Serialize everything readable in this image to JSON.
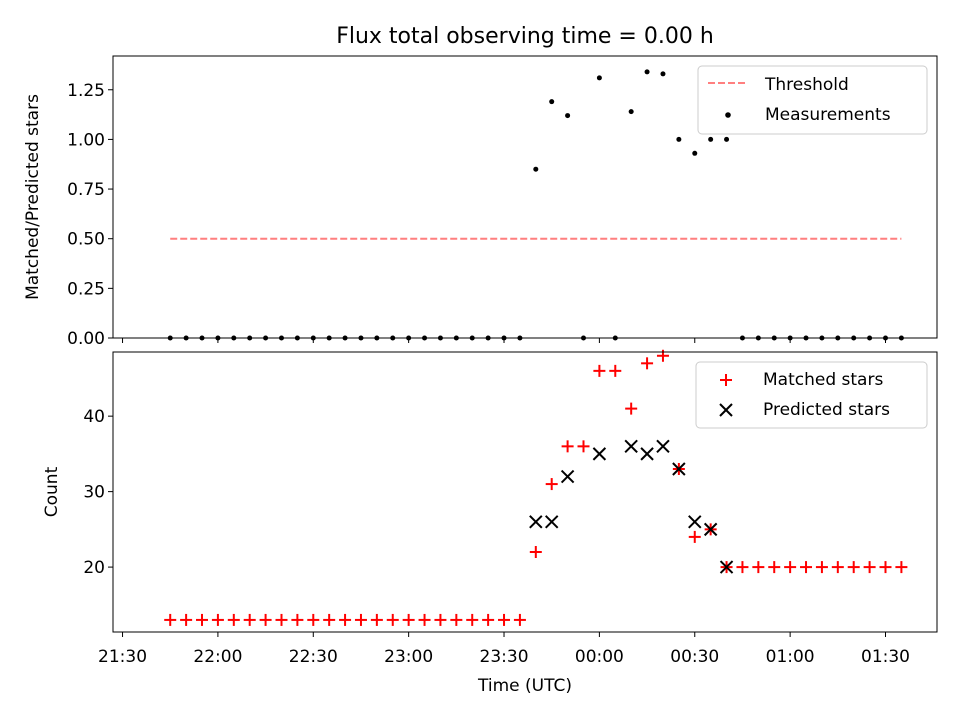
{
  "chart_data": [
    {
      "type": "scatter",
      "title": "Flux total observing time = 0.00 h",
      "xlabel": "",
      "ylabel": "Matched/Predicted stars",
      "ylim": [
        0.0,
        1.42
      ],
      "yticks": [
        "0.00",
        "0.25",
        "0.50",
        "0.75",
        "1.00",
        "1.25"
      ],
      "x_is_time": true,
      "xlim_hours": [
        21.45,
        25.77
      ],
      "legend_position": "upper right",
      "threshold": {
        "name": "Threshold",
        "x_range": [
          "21:45",
          "01:35"
        ],
        "value": 0.5,
        "color": "#ff7f7f",
        "style": "dashed"
      },
      "series": [
        {
          "name": "Measurements",
          "color": "#000000",
          "marker": "dot",
          "x": [
            "21:45",
            "21:50",
            "21:55",
            "22:00",
            "22:05",
            "22:10",
            "22:15",
            "22:20",
            "22:25",
            "22:30",
            "22:35",
            "22:40",
            "22:45",
            "22:50",
            "22:55",
            "23:00",
            "23:05",
            "23:10",
            "23:15",
            "23:20",
            "23:25",
            "23:30",
            "23:35",
            "23:40",
            "23:45",
            "23:50",
            "23:55",
            "00:00",
            "00:05",
            "00:10",
            "00:15",
            "00:20",
            "00:25",
            "00:30",
            "00:35",
            "00:40",
            "00:45",
            "00:50",
            "00:55",
            "01:00",
            "01:05",
            "01:10",
            "01:15",
            "01:20",
            "01:25",
            "01:30",
            "01:35"
          ],
          "y": [
            0,
            0,
            0,
            0,
            0,
            0,
            0,
            0,
            0,
            0,
            0,
            0,
            0,
            0,
            0,
            0,
            0,
            0,
            0,
            0,
            0,
            0,
            0,
            0.85,
            1.19,
            1.12,
            0,
            1.31,
            0,
            1.14,
            1.34,
            1.33,
            1.0,
            0.93,
            1.0,
            1.0,
            0,
            0,
            0,
            0,
            0,
            0,
            0,
            0,
            0,
            0,
            0
          ]
        }
      ]
    },
    {
      "type": "scatter",
      "title": "",
      "xlabel": "Time (UTC)",
      "ylabel": "Count",
      "ylim": [
        11.4,
        48.5
      ],
      "yticks": [
        "20",
        "30",
        "40"
      ],
      "x_is_time": true,
      "xlim_hours": [
        21.45,
        25.77
      ],
      "xticks": [
        "21:30",
        "22:00",
        "22:30",
        "23:00",
        "23:30",
        "00:00",
        "00:30",
        "01:00",
        "01:30"
      ],
      "legend_position": "upper right",
      "series": [
        {
          "name": "Matched stars",
          "color": "#ff0000",
          "marker": "plus",
          "x": [
            "21:45",
            "21:50",
            "21:55",
            "22:00",
            "22:05",
            "22:10",
            "22:15",
            "22:20",
            "22:25",
            "22:30",
            "22:35",
            "22:40",
            "22:45",
            "22:50",
            "22:55",
            "23:00",
            "23:05",
            "23:10",
            "23:15",
            "23:20",
            "23:25",
            "23:30",
            "23:35",
            "23:40",
            "23:45",
            "23:50",
            "23:55",
            "00:00",
            "00:05",
            "00:10",
            "00:15",
            "00:20",
            "00:25",
            "00:30",
            "00:35",
            "00:40",
            "00:45",
            "00:50",
            "00:55",
            "01:00",
            "01:05",
            "01:10",
            "01:15",
            "01:20",
            "01:25",
            "01:30",
            "01:35"
          ],
          "y": [
            13,
            13,
            13,
            13,
            13,
            13,
            13,
            13,
            13,
            13,
            13,
            13,
            13,
            13,
            13,
            13,
            13,
            13,
            13,
            13,
            13,
            13,
            13,
            22,
            31,
            36,
            36,
            46,
            46,
            41,
            47,
            48,
            33,
            24,
            25,
            20,
            20,
            20,
            20,
            20,
            20,
            20,
            20,
            20,
            20,
            20,
            20
          ]
        },
        {
          "name": "Predicted stars",
          "color": "#000000",
          "marker": "x",
          "x": [
            "23:40",
            "23:45",
            "23:50",
            "00:00",
            "00:10",
            "00:15",
            "00:20",
            "00:25",
            "00:30",
            "00:35",
            "00:40"
          ],
          "y": [
            26,
            26,
            32,
            35,
            36,
            35,
            36,
            33,
            26,
            25,
            20
          ]
        }
      ]
    }
  ]
}
